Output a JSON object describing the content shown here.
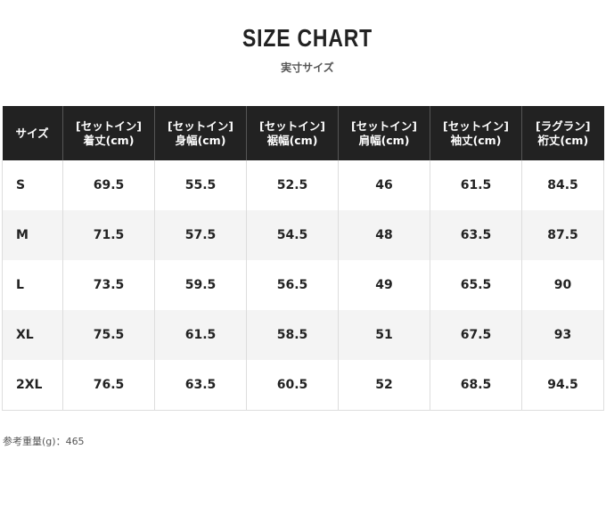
{
  "title": "SIZE CHART",
  "subtitle": "実寸サイズ",
  "table": {
    "headers": [
      [
        "サイズ"
      ],
      [
        "[セットイン]",
        "着丈(cm)"
      ],
      [
        "[セットイン]",
        "身幅(cm)"
      ],
      [
        "[セットイン]",
        "裾幅(cm)"
      ],
      [
        "[セットイン]",
        "肩幅(cm)"
      ],
      [
        "[セットイン]",
        "袖丈(cm)"
      ],
      [
        "[ラグラン]",
        "裄丈(cm)"
      ]
    ],
    "rows": [
      [
        "S",
        "69.5",
        "55.5",
        "52.5",
        "46",
        "61.5",
        "84.5"
      ],
      [
        "M",
        "71.5",
        "57.5",
        "54.5",
        "48",
        "63.5",
        "87.5"
      ],
      [
        "L",
        "73.5",
        "59.5",
        "56.5",
        "49",
        "65.5",
        "90"
      ],
      [
        "XL",
        "75.5",
        "61.5",
        "58.5",
        "51",
        "67.5",
        "93"
      ],
      [
        "2XL",
        "76.5",
        "63.5",
        "60.5",
        "52",
        "68.5",
        "94.5"
      ]
    ]
  },
  "note": "参考重量(g)：465",
  "colors": {
    "header_bg": "#222222",
    "header_text": "#ffffff",
    "stripe_bg": "#f4f4f4",
    "border": "#dddddd"
  }
}
